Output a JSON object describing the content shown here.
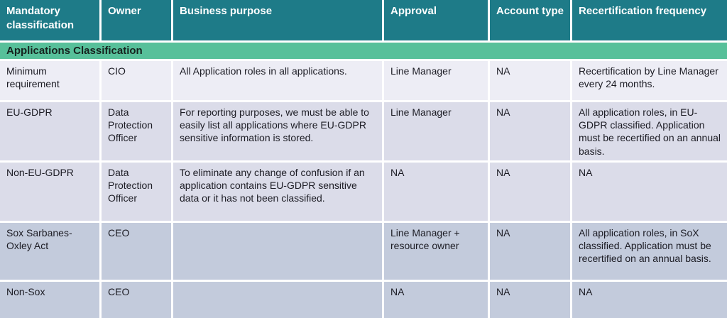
{
  "table": {
    "columns": [
      {
        "label": "Mandatory classification"
      },
      {
        "label": "Owner"
      },
      {
        "label": "Business purpose"
      },
      {
        "label": "Approval"
      },
      {
        "label": "Account type"
      },
      {
        "label": "Recertification frequency"
      }
    ],
    "section_header": "Applications Classification",
    "rows": [
      {
        "classification": "Minimum requirement",
        "owner": "CIO",
        "business_purpose": "All Application roles in all applications.",
        "approval": "Line Manager",
        "account_type": "NA",
        "recertification_frequency": "Recertification by Line Manager every 24 months."
      },
      {
        "classification": "EU-GDPR",
        "owner": "Data Protection Officer",
        "business_purpose": "For reporting purposes, we must be able to easily list all applications where EU-GDPR sensitive information is stored.",
        "approval": "Line Manager",
        "account_type": "NA",
        "recertification_frequency": "All application roles, in EU-GDPR classified. Application must be recertified on an annual basis."
      },
      {
        "classification": "Non-EU-GDPR",
        "owner": "Data Protection Officer",
        "business_purpose": "To eliminate any change of confusion if an application contains EU-GDPR sensitive data or it has not been classified.",
        "approval": "NA",
        "account_type": "NA",
        "recertification_frequency": "NA"
      },
      {
        "classification": "Sox Sarbanes-Oxley Act",
        "owner": "CEO",
        "business_purpose": "",
        "approval": "Line Manager + resource owner",
        "account_type": "NA",
        "recertification_frequency": "All application roles, in SoX classified. Application must be recertified on an annual basis."
      },
      {
        "classification": "Non-Sox",
        "owner": "CEO",
        "business_purpose": "",
        "approval": "NA",
        "account_type": "NA",
        "recertification_frequency": "NA"
      }
    ]
  },
  "colors": {
    "header_background": "#1e7b88",
    "header_text": "#ffffff",
    "section_background": "#57c09a",
    "row_tint_light": "#ededf5",
    "row_tint_medium": "#dbdce9",
    "row_tint_dark": "#c3cbdc",
    "body_text": "#1c1c24",
    "separator": "#ffffff"
  }
}
